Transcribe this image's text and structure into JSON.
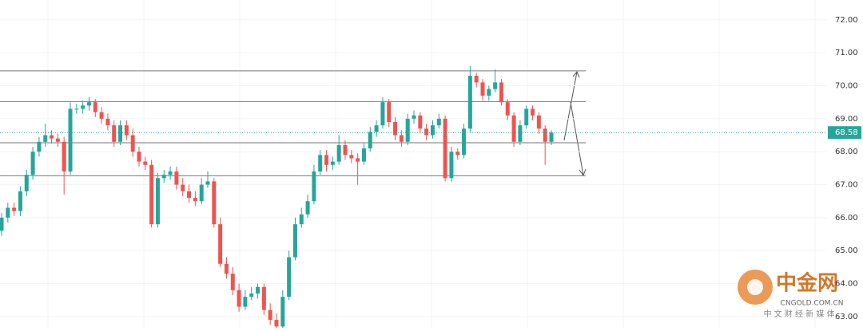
{
  "chart_data": {
    "type": "candlestick",
    "open": [
      65.6,
      66.0,
      66.3,
      66.2,
      66.8,
      67.3,
      68.0,
      68.3,
      68.5,
      68.4,
      68.3,
      67.4,
      69.3,
      69.3,
      69.4,
      69.5,
      69.2,
      69.0,
      68.8,
      68.3,
      68.8,
      68.5,
      68.0,
      67.7,
      67.6,
      65.8,
      67.2,
      67.3,
      67.4,
      67.0,
      66.8,
      66.6,
      66.5,
      67.0,
      67.1,
      65.8,
      64.6,
      64.3,
      63.8,
      63.3,
      63.6,
      63.7,
      63.9,
      63.2,
      62.9,
      62.7,
      63.6,
      64.8,
      65.8,
      66.1,
      66.5,
      67.4,
      67.9,
      67.6,
      67.7,
      68.2,
      67.9,
      67.8,
      67.7,
      68.1,
      68.6,
      68.8,
      69.5,
      68.9,
      68.5,
      68.3,
      69.0,
      69.1,
      68.7,
      68.5,
      68.8,
      69.0,
      67.2,
      68.0,
      67.9,
      68.7,
      70.3,
      70.1,
      69.7,
      69.9,
      70.1,
      69.5,
      69.1,
      68.3,
      68.8,
      69.3,
      69.1,
      68.7,
      68.3
    ],
    "high": [
      66.15,
      66.45,
      66.45,
      66.95,
      67.45,
      68.15,
      68.45,
      68.85,
      68.65,
      68.55,
      68.45,
      69.5,
      69.45,
      69.55,
      69.65,
      69.6,
      69.35,
      69.15,
      68.95,
      68.95,
      68.95,
      68.7,
      68.15,
      67.85,
      67.75,
      67.35,
      67.45,
      67.55,
      67.55,
      67.2,
      67.0,
      66.8,
      67.2,
      67.4,
      67.2,
      66.0,
      64.8,
      64.5,
      64.0,
      63.8,
      63.9,
      64.0,
      64.0,
      63.4,
      63.1,
      63.8,
      65.0,
      66.0,
      66.3,
      66.7,
      67.6,
      68.05,
      68.05,
      67.85,
      68.5,
      68.35,
      68.05,
      67.95,
      68.25,
      68.75,
      68.95,
      69.65,
      69.6,
      69.05,
      68.65,
      69.15,
      69.25,
      69.2,
      68.85,
      68.95,
      69.15,
      69.1,
      68.15,
      68.1,
      68.85,
      70.6,
      70.4,
      70.2,
      70.0,
      70.5,
      70.2,
      69.6,
      69.2,
      68.95,
      69.4,
      69.4,
      69.2,
      68.8,
      68.65
    ],
    "low": [
      65.45,
      65.85,
      66.05,
      66.05,
      66.65,
      67.15,
      67.85,
      68.15,
      68.25,
      68.15,
      66.7,
      67.3,
      69.15,
      69.15,
      69.25,
      69.05,
      68.85,
      68.65,
      68.15,
      68.2,
      68.35,
      67.85,
      67.55,
      67.45,
      65.7,
      65.7,
      67.05,
      67.15,
      66.85,
      66.65,
      66.45,
      66.35,
      66.4,
      66.9,
      65.7,
      64.5,
      64.15,
      63.65,
      63.15,
      63.2,
      63.5,
      63.55,
      63.05,
      62.75,
      62.55,
      62.6,
      63.5,
      64.7,
      65.7,
      66.0,
      66.4,
      67.3,
      67.4,
      67.45,
      67.6,
      67.75,
      67.65,
      67.0,
      67.6,
      68.0,
      68.45,
      68.7,
      68.75,
      68.35,
      68.15,
      68.2,
      68.85,
      68.55,
      68.35,
      68.4,
      68.7,
      67.1,
      67.1,
      67.75,
      67.8,
      68.6,
      69.95,
      69.55,
      69.55,
      69.8,
      69.4,
      68.95,
      68.15,
      68.2,
      68.7,
      68.95,
      68.55,
      67.6,
      68.2
    ],
    "close": [
      66.0,
      66.3,
      66.2,
      66.8,
      67.3,
      68.0,
      68.3,
      68.5,
      68.4,
      68.3,
      67.4,
      69.3,
      69.3,
      69.4,
      69.5,
      69.2,
      69.0,
      68.8,
      68.3,
      68.8,
      68.5,
      68.0,
      67.7,
      67.6,
      65.8,
      67.2,
      67.3,
      67.4,
      67.0,
      66.8,
      66.6,
      66.5,
      67.0,
      67.1,
      65.8,
      64.6,
      64.3,
      63.8,
      63.3,
      63.6,
      63.7,
      63.9,
      63.2,
      62.9,
      62.7,
      63.6,
      64.8,
      65.8,
      66.1,
      66.5,
      67.4,
      67.9,
      67.6,
      67.7,
      68.2,
      67.9,
      67.8,
      67.7,
      68.1,
      68.6,
      68.8,
      69.5,
      68.9,
      68.5,
      68.3,
      69.0,
      69.1,
      68.7,
      68.5,
      68.8,
      69.0,
      67.2,
      68.0,
      67.9,
      68.7,
      70.3,
      70.1,
      69.7,
      69.9,
      70.1,
      69.5,
      69.1,
      68.3,
      68.8,
      69.3,
      69.1,
      68.7,
      68.3,
      68.58
    ],
    "up_color": "#26a69a",
    "down_color": "#ef5350",
    "ylim": [
      62.66,
      72.6
    ],
    "yticks": [
      {
        "value": 63,
        "label": "63.00"
      },
      {
        "value": 64,
        "label": "64.00"
      },
      {
        "value": 65,
        "label": "65.00"
      },
      {
        "value": 66,
        "label": "66.00"
      },
      {
        "value": 67,
        "label": "67.00"
      },
      {
        "value": 68,
        "label": "68.00"
      },
      {
        "value": 69,
        "label": "69.00"
      },
      {
        "value": 70,
        "label": "70.00"
      },
      {
        "value": 71,
        "label": "71.00"
      },
      {
        "value": 72,
        "label": "72.00"
      }
    ],
    "grid": true,
    "levels": [
      70.45,
      69.52,
      68.27,
      67.27
    ],
    "last_price": {
      "value": 68.58,
      "label": "68.58"
    }
  },
  "watermark": {
    "name": "中金网",
    "domain": "CNGOLD.COM.CN",
    "slogan": "中 文 财 经 新 媒 体"
  }
}
